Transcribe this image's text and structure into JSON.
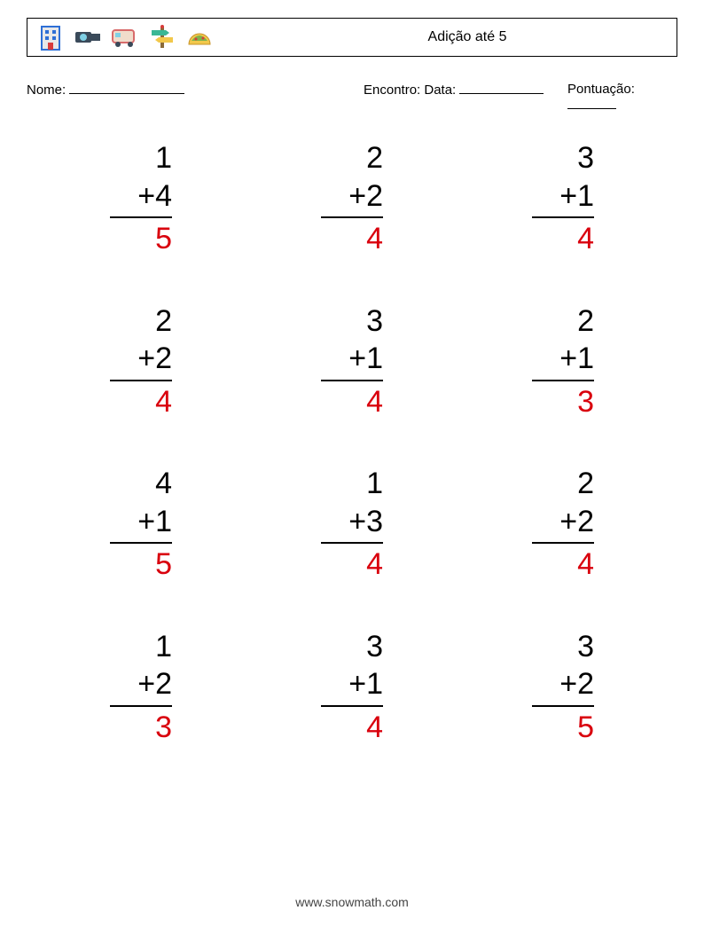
{
  "header": {
    "title": "Adição até 5"
  },
  "meta": {
    "name_label": "Nome:",
    "encounter_label": "Encontro: Data:",
    "score_label": "Pontuação:"
  },
  "style": {
    "number_color": "#000000",
    "answer_color": "#d9000d",
    "number_fontsize": 34,
    "grid_cols": 3,
    "grid_rows": 4,
    "icon_size": 32
  },
  "problems": [
    {
      "a": "1",
      "op": "+",
      "b": "4",
      "ans": "5"
    },
    {
      "a": "2",
      "op": "+",
      "b": "2",
      "ans": "4"
    },
    {
      "a": "3",
      "op": "+",
      "b": "1",
      "ans": "4"
    },
    {
      "a": "2",
      "op": "+",
      "b": "2",
      "ans": "4"
    },
    {
      "a": "3",
      "op": "+",
      "b": "1",
      "ans": "4"
    },
    {
      "a": "2",
      "op": "+",
      "b": "1",
      "ans": "3"
    },
    {
      "a": "4",
      "op": "+",
      "b": "1",
      "ans": "5"
    },
    {
      "a": "1",
      "op": "+",
      "b": "3",
      "ans": "4"
    },
    {
      "a": "2",
      "op": "+",
      "b": "2",
      "ans": "4"
    },
    {
      "a": "1",
      "op": "+",
      "b": "2",
      "ans": "3"
    },
    {
      "a": "3",
      "op": "+",
      "b": "1",
      "ans": "4"
    },
    {
      "a": "3",
      "op": "+",
      "b": "2",
      "ans": "5"
    }
  ],
  "footer": {
    "url": "www.snowmath.com"
  },
  "icons": [
    {
      "name": "building-icon",
      "fill": "#2e6fd6",
      "accent": "#d93b3b"
    },
    {
      "name": "camera-icon",
      "fill": "#3a4a5a",
      "accent": "#7fd0e5"
    },
    {
      "name": "camper-icon",
      "fill": "#d86b6b",
      "accent": "#f0dccb"
    },
    {
      "name": "signpost-icon",
      "fill": "#3ab795",
      "accent": "#f2c84b"
    },
    {
      "name": "taco-icon",
      "fill": "#f2c84b",
      "accent": "#7fb24c"
    }
  ]
}
